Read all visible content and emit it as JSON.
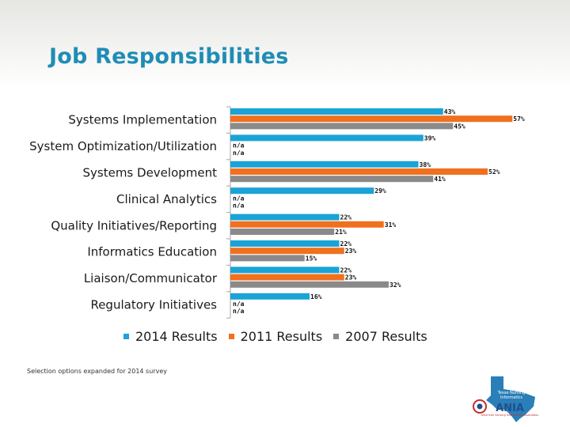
{
  "slide": {
    "title": "Job Responsibilities",
    "footnote": "Selection options expanded for 2014 survey"
  },
  "colors": {
    "s2014": "#1ba3d6",
    "s2011": "#f0701e",
    "s2007": "#8a8a8a",
    "title": "#1f8db5",
    "axis": "#a6a6a6"
  },
  "logo": {
    "line1": "Texas Nursing",
    "line2": "Informatics",
    "word": "ANIA",
    "tagline": "American Nursing Informatics Association"
  },
  "chart_data": {
    "type": "bar",
    "orientation": "horizontal",
    "xlim": [
      0,
      60
    ],
    "categories": [
      "Systems Implementation",
      "System Optimization/Utilization",
      "Systems Development",
      "Clinical Analytics",
      "Quality Initiatives/Reporting",
      "Informatics Education",
      "Liaison/Communicator",
      "Regulatory Initiatives"
    ],
    "series": [
      {
        "name": "2014 Results",
        "key": "s2014",
        "values": [
          43,
          39,
          38,
          29,
          22,
          22,
          22,
          16
        ],
        "labels": [
          "43%",
          "39%",
          "38%",
          "29%",
          "22%",
          "22%",
          "22%",
          "16%"
        ]
      },
      {
        "name": "2011 Results",
        "key": "s2011",
        "values": [
          57,
          null,
          52,
          null,
          31,
          23,
          23,
          null
        ],
        "labels": [
          "57%",
          "n/a",
          "52%",
          "n/a",
          "31%",
          "23%",
          "23%",
          "n/a"
        ]
      },
      {
        "name": "2007 Results",
        "key": "s2007",
        "values": [
          45,
          null,
          41,
          null,
          21,
          15,
          32,
          null
        ],
        "labels": [
          "45%",
          "n/a",
          "41%",
          "n/a",
          "21%",
          "15%",
          "32%",
          "n/a"
        ]
      }
    ]
  }
}
